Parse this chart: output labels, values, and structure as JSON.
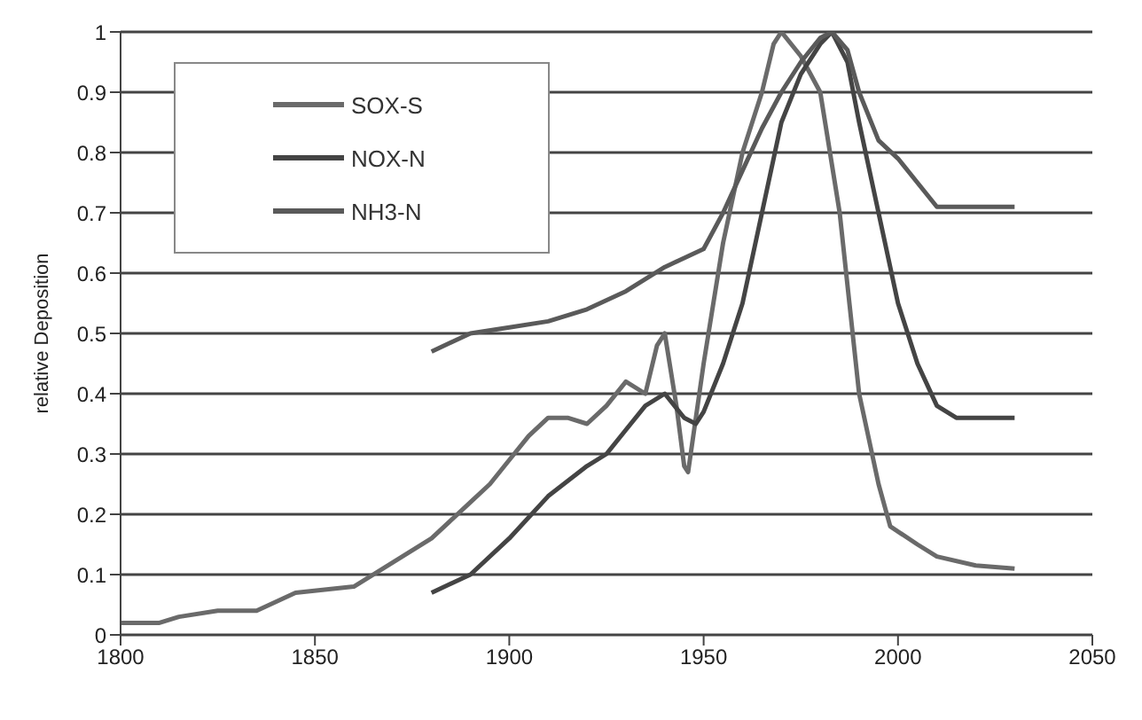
{
  "chart_data": {
    "type": "line",
    "ylabel": "relative Deposition",
    "xlim": [
      1800,
      2050
    ],
    "xticks": [
      1800,
      1850,
      1900,
      1950,
      2000,
      2050
    ],
    "ylim": [
      0,
      1
    ],
    "yticks": [
      0,
      0.1,
      0.2,
      0.3,
      0.4,
      0.5,
      0.6,
      0.7,
      0.8,
      0.9,
      1
    ],
    "grid": "y",
    "legend": "top left",
    "marker": "none",
    "line_style": "solid",
    "series": [
      {
        "name": "SOX-S",
        "color": "#6a6a6a",
        "x": [
          1800,
          1810,
          1815,
          1825,
          1835,
          1845,
          1860,
          1870,
          1880,
          1890,
          1895,
          1900,
          1905,
          1910,
          1915,
          1920,
          1925,
          1930,
          1935,
          1938,
          1940,
          1943,
          1945,
          1946,
          1950,
          1955,
          1960,
          1965,
          1968,
          1970,
          1975,
          1980,
          1985,
          1990,
          1995,
          1998,
          2005,
          2010,
          2020,
          2030
        ],
        "values": [
          0.02,
          0.02,
          0.03,
          0.04,
          0.04,
          0.07,
          0.08,
          0.12,
          0.16,
          0.22,
          0.25,
          0.29,
          0.33,
          0.36,
          0.36,
          0.35,
          0.38,
          0.42,
          0.4,
          0.48,
          0.5,
          0.38,
          0.28,
          0.27,
          0.45,
          0.65,
          0.8,
          0.9,
          0.98,
          1,
          0.96,
          0.9,
          0.7,
          0.4,
          0.25,
          0.18,
          0.15,
          0.13,
          0.115,
          0.11
        ]
      },
      {
        "name": "NOX-N",
        "color": "#444444",
        "x": [
          1880,
          1890,
          1900,
          1910,
          1920,
          1925,
          1930,
          1935,
          1940,
          1945,
          1948,
          1950,
          1955,
          1960,
          1965,
          1970,
          1975,
          1980,
          1983,
          1987,
          1990,
          1995,
          2000,
          2005,
          2010,
          2015,
          2030
        ],
        "values": [
          0.07,
          0.1,
          0.16,
          0.23,
          0.28,
          0.3,
          0.34,
          0.38,
          0.4,
          0.36,
          0.35,
          0.37,
          0.45,
          0.55,
          0.7,
          0.85,
          0.93,
          0.98,
          1,
          0.95,
          0.85,
          0.7,
          0.55,
          0.45,
          0.38,
          0.36,
          0.36
        ]
      },
      {
        "name": "NH3-N",
        "color": "#5a5a5a",
        "x": [
          1880,
          1890,
          1900,
          1910,
          1920,
          1930,
          1940,
          1950,
          1955,
          1960,
          1965,
          1970,
          1975,
          1980,
          1983,
          1987,
          1990,
          1995,
          2000,
          2005,
          2010,
          2030
        ],
        "values": [
          0.47,
          0.5,
          0.51,
          0.52,
          0.54,
          0.57,
          0.61,
          0.64,
          0.7,
          0.77,
          0.84,
          0.9,
          0.95,
          0.99,
          1,
          0.97,
          0.9,
          0.82,
          0.79,
          0.75,
          0.71,
          0.71
        ]
      }
    ]
  }
}
